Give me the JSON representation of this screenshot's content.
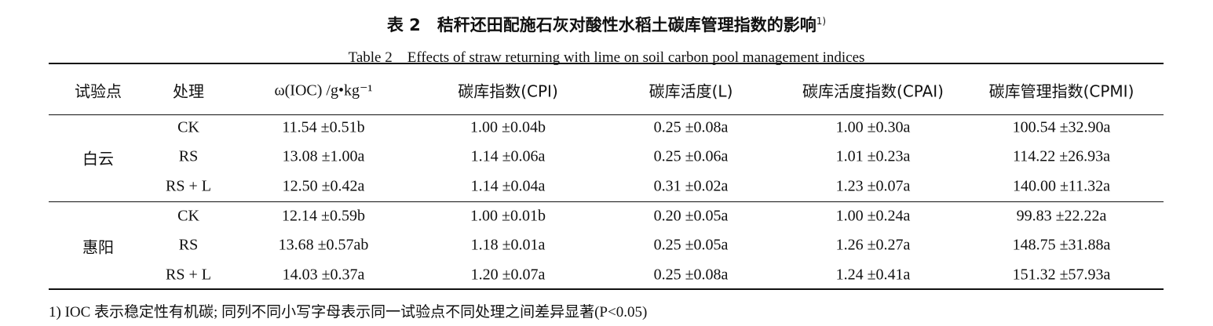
{
  "title": {
    "label": "表 2",
    "text": "秸秆还田配施石灰对酸性水稻土碳库管理指数的影响",
    "note": "1)"
  },
  "subtitle": "Table 2　Effects of straw returning with lime on soil carbon pool management indices",
  "table": {
    "columns": [
      "试验点",
      "处理",
      "ω(IOC) /g•kg⁻¹",
      "碳库指数(CPI)",
      "碳库活度(L)",
      "碳库活度指数(CPAI)",
      "碳库管理指数(CPMI)"
    ],
    "groups": [
      {
        "site": "白云",
        "rows": [
          [
            "CK",
            "11.54 ±0.51b",
            "1.00 ±0.04b",
            "0.25 ±0.08a",
            "1.00 ±0.30a",
            "100.54 ±32.90a"
          ],
          [
            "RS",
            "13.08 ±1.00a",
            "1.14 ±0.06a",
            "0.25 ±0.06a",
            "1.01 ±0.23a",
            "114.22 ±26.93a"
          ],
          [
            "RS + L",
            "12.50 ±0.42a",
            "1.14 ±0.04a",
            "0.31 ±0.02a",
            "1.23 ±0.07a",
            "140.00 ±11.32a"
          ]
        ]
      },
      {
        "site": "惠阳",
        "rows": [
          [
            "CK",
            "12.14 ±0.59b",
            "1.00 ±0.01b",
            "0.20 ±0.05a",
            "1.00 ±0.24a",
            "99.83 ±22.22a"
          ],
          [
            "RS",
            "13.68 ±0.57ab",
            "1.18 ±0.01a",
            "0.25 ±0.05a",
            "1.26 ±0.27a",
            "148.75 ±31.88a"
          ],
          [
            "RS + L",
            "14.03 ±0.37a",
            "1.20 ±0.07a",
            "0.25 ±0.08a",
            "1.24 ±0.41a",
            "151.32 ±57.93a"
          ]
        ]
      }
    ]
  },
  "footnote": "1) IOC 表示稳定性有机碳; 同列不同小写字母表示同一试验点不同处理之间差异显著(P<0.05)"
}
